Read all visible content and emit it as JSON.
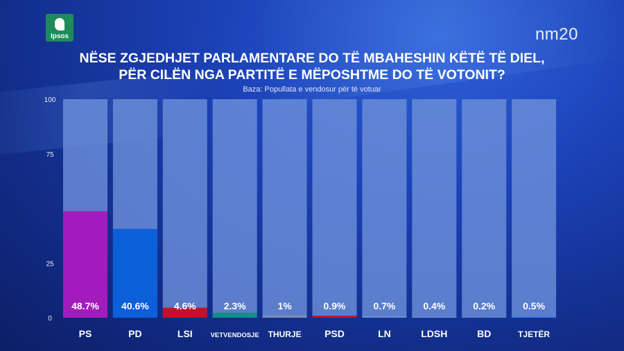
{
  "logo": {
    "text": "Ipsos"
  },
  "brand": "nm20",
  "title_line1": "NËSE ZGJEDHJET PARLAMENTARE DO TË MBAHESHIN KËTË TË DIEL,",
  "title_line2": "PËR CILËN NGA PARTITË E MËPOSHTME DO TË VOTONIT?",
  "subtitle": "Baza: Popullata e vendosur për të votuar",
  "colors": {
    "track": "#6b8fd9",
    "PS": "#a41bbd",
    "PD": "#0b5fd9",
    "LSI": "#c4102a",
    "VETVENDOSJE": "#138e8a",
    "THURJE": "#7a8fb5",
    "PSD": "#c4102a",
    "LN": "#6b8fd9",
    "LDSH": "#6b8fd9",
    "BD": "#6b8fd9",
    "TJETËR": "#3a7be8"
  },
  "chart_data": {
    "type": "bar",
    "title": "NËSE ZGJEDHJET PARLAMENTARE DO TË MBAHESHIN KËTË TË DIEL, PËR CILËN NGA PARTITË E MËPOSHTME DO TË VOTONIT?",
    "subtitle": "Baza: Popullata e vendosur për të votuar",
    "categories": [
      "PS",
      "PD",
      "LSI",
      "VETVENDOSJE",
      "THURJE",
      "PSD",
      "LN",
      "LDSH",
      "BD",
      "TJETËR"
    ],
    "values": [
      48.7,
      40.6,
      4.6,
      2.3,
      1,
      0.9,
      0.7,
      0.4,
      0.2,
      0.5
    ],
    "labels": [
      "48.7%",
      "40.6%",
      "4.6%",
      "2.3%",
      "1%",
      "0.9%",
      "0.7%",
      "0.4%",
      "0.2%",
      "0.5%"
    ],
    "yticks": [
      "100",
      "75",
      "25",
      "0"
    ],
    "ytick_values": [
      100,
      75,
      25,
      0
    ],
    "ylim": [
      0,
      100
    ],
    "xlabel": "",
    "ylabel": "",
    "grid": false,
    "legend": "none"
  }
}
